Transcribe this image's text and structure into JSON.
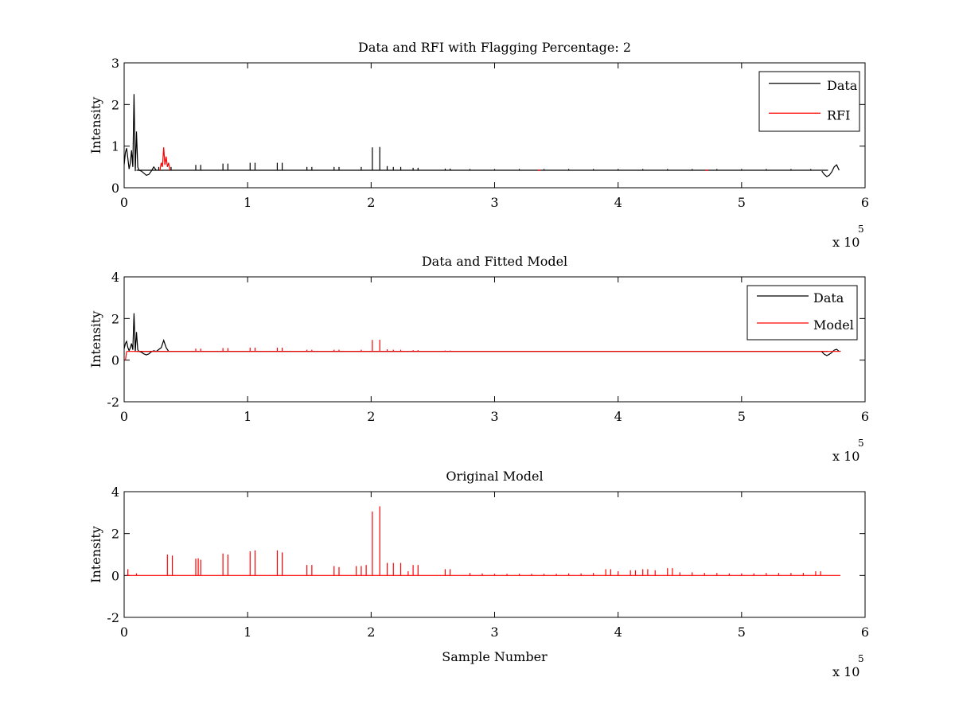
{
  "chart_data": [
    {
      "type": "line",
      "title": "Data and RFI with Flagging Percentage: 2",
      "xlabel": "",
      "ylabel": "Intensity",
      "xlim": [
        0,
        600000
      ],
      "ylim": [
        0,
        3
      ],
      "x_ticks": [
        "0",
        "1",
        "2",
        "3",
        "4",
        "5",
        "6"
      ],
      "y_ticks": [
        "0",
        "1",
        "2",
        "3"
      ],
      "x_multiplier": "x 10",
      "x_multiplier_exponent": "5",
      "legend": {
        "placement": "top-right",
        "entries": [
          "Data",
          "RFI"
        ]
      },
      "grid": false,
      "series": [
        {
          "name": "Data",
          "color": "#000000",
          "baseline": 0.42,
          "baseline_range": [
            10000,
            570000
          ],
          "segments": [
            [
              [
                0,
                0.55
              ],
              [
                1000,
                0.85
              ],
              [
                2000,
                0.95
              ],
              [
                3000,
                0.7
              ],
              [
                4000,
                0.45
              ],
              [
                5000,
                0.6
              ],
              [
                6000,
                0.9
              ],
              [
                7000,
                0.5
              ],
              [
                8000,
                2.25
              ],
              [
                9000,
                0.4
              ],
              [
                10000,
                1.35
              ],
              [
                11000,
                0.5
              ],
              [
                12000,
                0.42
              ],
              [
                14000,
                0.4
              ],
              [
                16000,
                0.35
              ],
              [
                18000,
                0.3
              ],
              [
                20000,
                0.32
              ],
              [
                22000,
                0.4
              ],
              [
                24000,
                0.5
              ],
              [
                26000,
                0.42
              ]
            ],
            [
              [
                565000,
                0.4
              ],
              [
                567000,
                0.32
              ],
              [
                569000,
                0.27
              ],
              [
                571000,
                0.3
              ],
              [
                573000,
                0.38
              ],
              [
                575000,
                0.5
              ],
              [
                577000,
                0.55
              ],
              [
                579000,
                0.42
              ]
            ]
          ],
          "spikes": [
            [
              28000,
              0.5
            ],
            [
              38000,
              0.5
            ],
            [
              58000,
              0.55
            ],
            [
              62000,
              0.55
            ],
            [
              80000,
              0.58
            ],
            [
              84000,
              0.58
            ],
            [
              102000,
              0.6
            ],
            [
              106000,
              0.6
            ],
            [
              124000,
              0.6
            ],
            [
              128000,
              0.6
            ],
            [
              148000,
              0.5
            ],
            [
              152000,
              0.5
            ],
            [
              170000,
              0.5
            ],
            [
              174000,
              0.5
            ],
            [
              192000,
              0.5
            ],
            [
              201000,
              0.97
            ],
            [
              207000,
              0.98
            ],
            [
              213000,
              0.52
            ],
            [
              218000,
              0.5
            ],
            [
              224000,
              0.5
            ],
            [
              234000,
              0.48
            ],
            [
              238000,
              0.48
            ],
            [
              260000,
              0.46
            ],
            [
              264000,
              0.46
            ],
            [
              280000,
              0.45
            ],
            [
              300000,
              0.45
            ],
            [
              320000,
              0.45
            ],
            [
              340000,
              0.45
            ],
            [
              360000,
              0.45
            ],
            [
              380000,
              0.45
            ],
            [
              400000,
              0.45
            ],
            [
              420000,
              0.45
            ],
            [
              440000,
              0.45
            ],
            [
              460000,
              0.45
            ],
            [
              480000,
              0.45
            ],
            [
              500000,
              0.45
            ],
            [
              520000,
              0.45
            ],
            [
              540000,
              0.45
            ],
            [
              556000,
              0.45
            ]
          ]
        },
        {
          "name": "RFI",
          "color": "#ff0000",
          "segments": [
            [
              [
                29000,
                0.42
              ],
              [
                30000,
                0.6
              ],
              [
                31000,
                0.5
              ],
              [
                32000,
                0.97
              ],
              [
                33000,
                0.55
              ],
              [
                34000,
                0.75
              ],
              [
                35000,
                0.5
              ],
              [
                36000,
                0.6
              ],
              [
                37000,
                0.42
              ]
            ]
          ],
          "markers": [
            [
              336000,
              0.42
            ],
            [
              472000,
              0.42
            ]
          ]
        }
      ]
    },
    {
      "type": "line",
      "title": "Data and Fitted Model",
      "xlabel": "",
      "ylabel": "Intensity",
      "xlim": [
        0,
        600000
      ],
      "ylim": [
        -2,
        4
      ],
      "x_ticks": [
        "0",
        "1",
        "2",
        "3",
        "4",
        "5",
        "6"
      ],
      "y_ticks": [
        "-2",
        "0",
        "2",
        "4"
      ],
      "x_multiplier": "x 10",
      "x_multiplier_exponent": "5",
      "legend": {
        "placement": "top-right",
        "entries": [
          "Data",
          "Model"
        ]
      },
      "grid": false,
      "series": [
        {
          "name": "Data",
          "color": "#000000",
          "baseline": 0.42,
          "baseline_range": [
            10000,
            570000
          ],
          "segments": [
            [
              [
                0,
                0.55
              ],
              [
                1000,
                0.8
              ],
              [
                2000,
                0.9
              ],
              [
                3000,
                0.6
              ],
              [
                4000,
                0.45
              ],
              [
                5000,
                0.6
              ],
              [
                6000,
                0.8
              ],
              [
                7000,
                0.5
              ],
              [
                8000,
                2.25
              ],
              [
                9000,
                0.4
              ],
              [
                10000,
                1.35
              ],
              [
                11000,
                0.5
              ],
              [
                12000,
                0.42
              ],
              [
                14000,
                0.38
              ],
              [
                16000,
                0.3
              ],
              [
                18000,
                0.25
              ],
              [
                20000,
                0.3
              ],
              [
                22000,
                0.4
              ],
              [
                24000,
                0.45
              ],
              [
                26000,
                0.42
              ],
              [
                30000,
                0.6
              ],
              [
                32000,
                0.95
              ],
              [
                34000,
                0.6
              ],
              [
                36000,
                0.42
              ]
            ],
            [
              [
                565000,
                0.4
              ],
              [
                567000,
                0.28
              ],
              [
                569000,
                0.22
              ],
              [
                571000,
                0.28
              ],
              [
                573000,
                0.36
              ],
              [
                575000,
                0.48
              ],
              [
                577000,
                0.52
              ],
              [
                579000,
                0.42
              ]
            ]
          ],
          "spikes": [
            [
              580000,
              0.45
            ]
          ]
        },
        {
          "name": "Model",
          "color": "#ff0000",
          "baseline": 0.42,
          "baseline_range": [
            2000,
            580000
          ],
          "segments": [
            [
              [
                1000,
                0
              ],
              [
                2000,
                0.42
              ]
            ]
          ],
          "spikes": [
            [
              58000,
              0.55
            ],
            [
              62000,
              0.55
            ],
            [
              80000,
              0.58
            ],
            [
              84000,
              0.58
            ],
            [
              102000,
              0.6
            ],
            [
              106000,
              0.6
            ],
            [
              124000,
              0.6
            ],
            [
              128000,
              0.6
            ],
            [
              148000,
              0.5
            ],
            [
              152000,
              0.5
            ],
            [
              170000,
              0.5
            ],
            [
              174000,
              0.5
            ],
            [
              192000,
              0.5
            ],
            [
              201000,
              0.97
            ],
            [
              207000,
              0.98
            ],
            [
              213000,
              0.52
            ],
            [
              218000,
              0.5
            ],
            [
              224000,
              0.5
            ],
            [
              234000,
              0.48
            ],
            [
              238000,
              0.48
            ],
            [
              260000,
              0.46
            ],
            [
              264000,
              0.46
            ]
          ]
        }
      ]
    },
    {
      "type": "line",
      "title": "Original Model",
      "xlabel": "Sample Number",
      "ylabel": "Intensity",
      "xlim": [
        0,
        600000
      ],
      "ylim": [
        -2,
        4
      ],
      "x_ticks": [
        "0",
        "1",
        "2",
        "3",
        "4",
        "5",
        "6"
      ],
      "y_ticks": [
        "-2",
        "0",
        "2",
        "4"
      ],
      "x_multiplier": "x 10",
      "x_multiplier_exponent": "5",
      "legend": null,
      "grid": false,
      "series": [
        {
          "color": "#ff0000",
          "baseline": 0,
          "baseline_range": [
            2000,
            580000
          ],
          "spikes": [
            [
              3000,
              0.3
            ],
            [
              10000,
              0.1
            ],
            [
              35000,
              1.0
            ],
            [
              39000,
              0.95
            ],
            [
              58000,
              0.8
            ],
            [
              60000,
              0.82
            ],
            [
              62000,
              0.75
            ],
            [
              80000,
              1.05
            ],
            [
              84000,
              1.0
            ],
            [
              102000,
              1.15
            ],
            [
              106000,
              1.2
            ],
            [
              124000,
              1.2
            ],
            [
              128000,
              1.1
            ],
            [
              148000,
              0.5
            ],
            [
              152000,
              0.5
            ],
            [
              170000,
              0.45
            ],
            [
              174000,
              0.4
            ],
            [
              188000,
              0.45
            ],
            [
              192000,
              0.45
            ],
            [
              196000,
              0.5
            ],
            [
              201000,
              3.05
            ],
            [
              207000,
              3.3
            ],
            [
              213000,
              0.6
            ],
            [
              218000,
              0.6
            ],
            [
              224000,
              0.6
            ],
            [
              230000,
              0.2
            ],
            [
              234000,
              0.5
            ],
            [
              238000,
              0.5
            ],
            [
              260000,
              0.3
            ],
            [
              264000,
              0.3
            ],
            [
              280000,
              0.12
            ],
            [
              290000,
              0.1
            ],
            [
              300000,
              0.08
            ],
            [
              310000,
              0.08
            ],
            [
              320000,
              0.08
            ],
            [
              330000,
              0.08
            ],
            [
              340000,
              0.08
            ],
            [
              350000,
              0.08
            ],
            [
              360000,
              0.1
            ],
            [
              370000,
              0.1
            ],
            [
              380000,
              0.12
            ],
            [
              390000,
              0.3
            ],
            [
              394000,
              0.3
            ],
            [
              400000,
              0.2
            ],
            [
              410000,
              0.25
            ],
            [
              414000,
              0.25
            ],
            [
              420000,
              0.3
            ],
            [
              424000,
              0.3
            ],
            [
              430000,
              0.25
            ],
            [
              440000,
              0.35
            ],
            [
              444000,
              0.35
            ],
            [
              450000,
              0.15
            ],
            [
              460000,
              0.15
            ],
            [
              470000,
              0.12
            ],
            [
              480000,
              0.12
            ],
            [
              490000,
              0.1
            ],
            [
              500000,
              0.1
            ],
            [
              510000,
              0.1
            ],
            [
              520000,
              0.12
            ],
            [
              530000,
              0.12
            ],
            [
              540000,
              0.12
            ],
            [
              550000,
              0.12
            ],
            [
              560000,
              0.2
            ],
            [
              564000,
              0.2
            ]
          ]
        }
      ]
    }
  ]
}
